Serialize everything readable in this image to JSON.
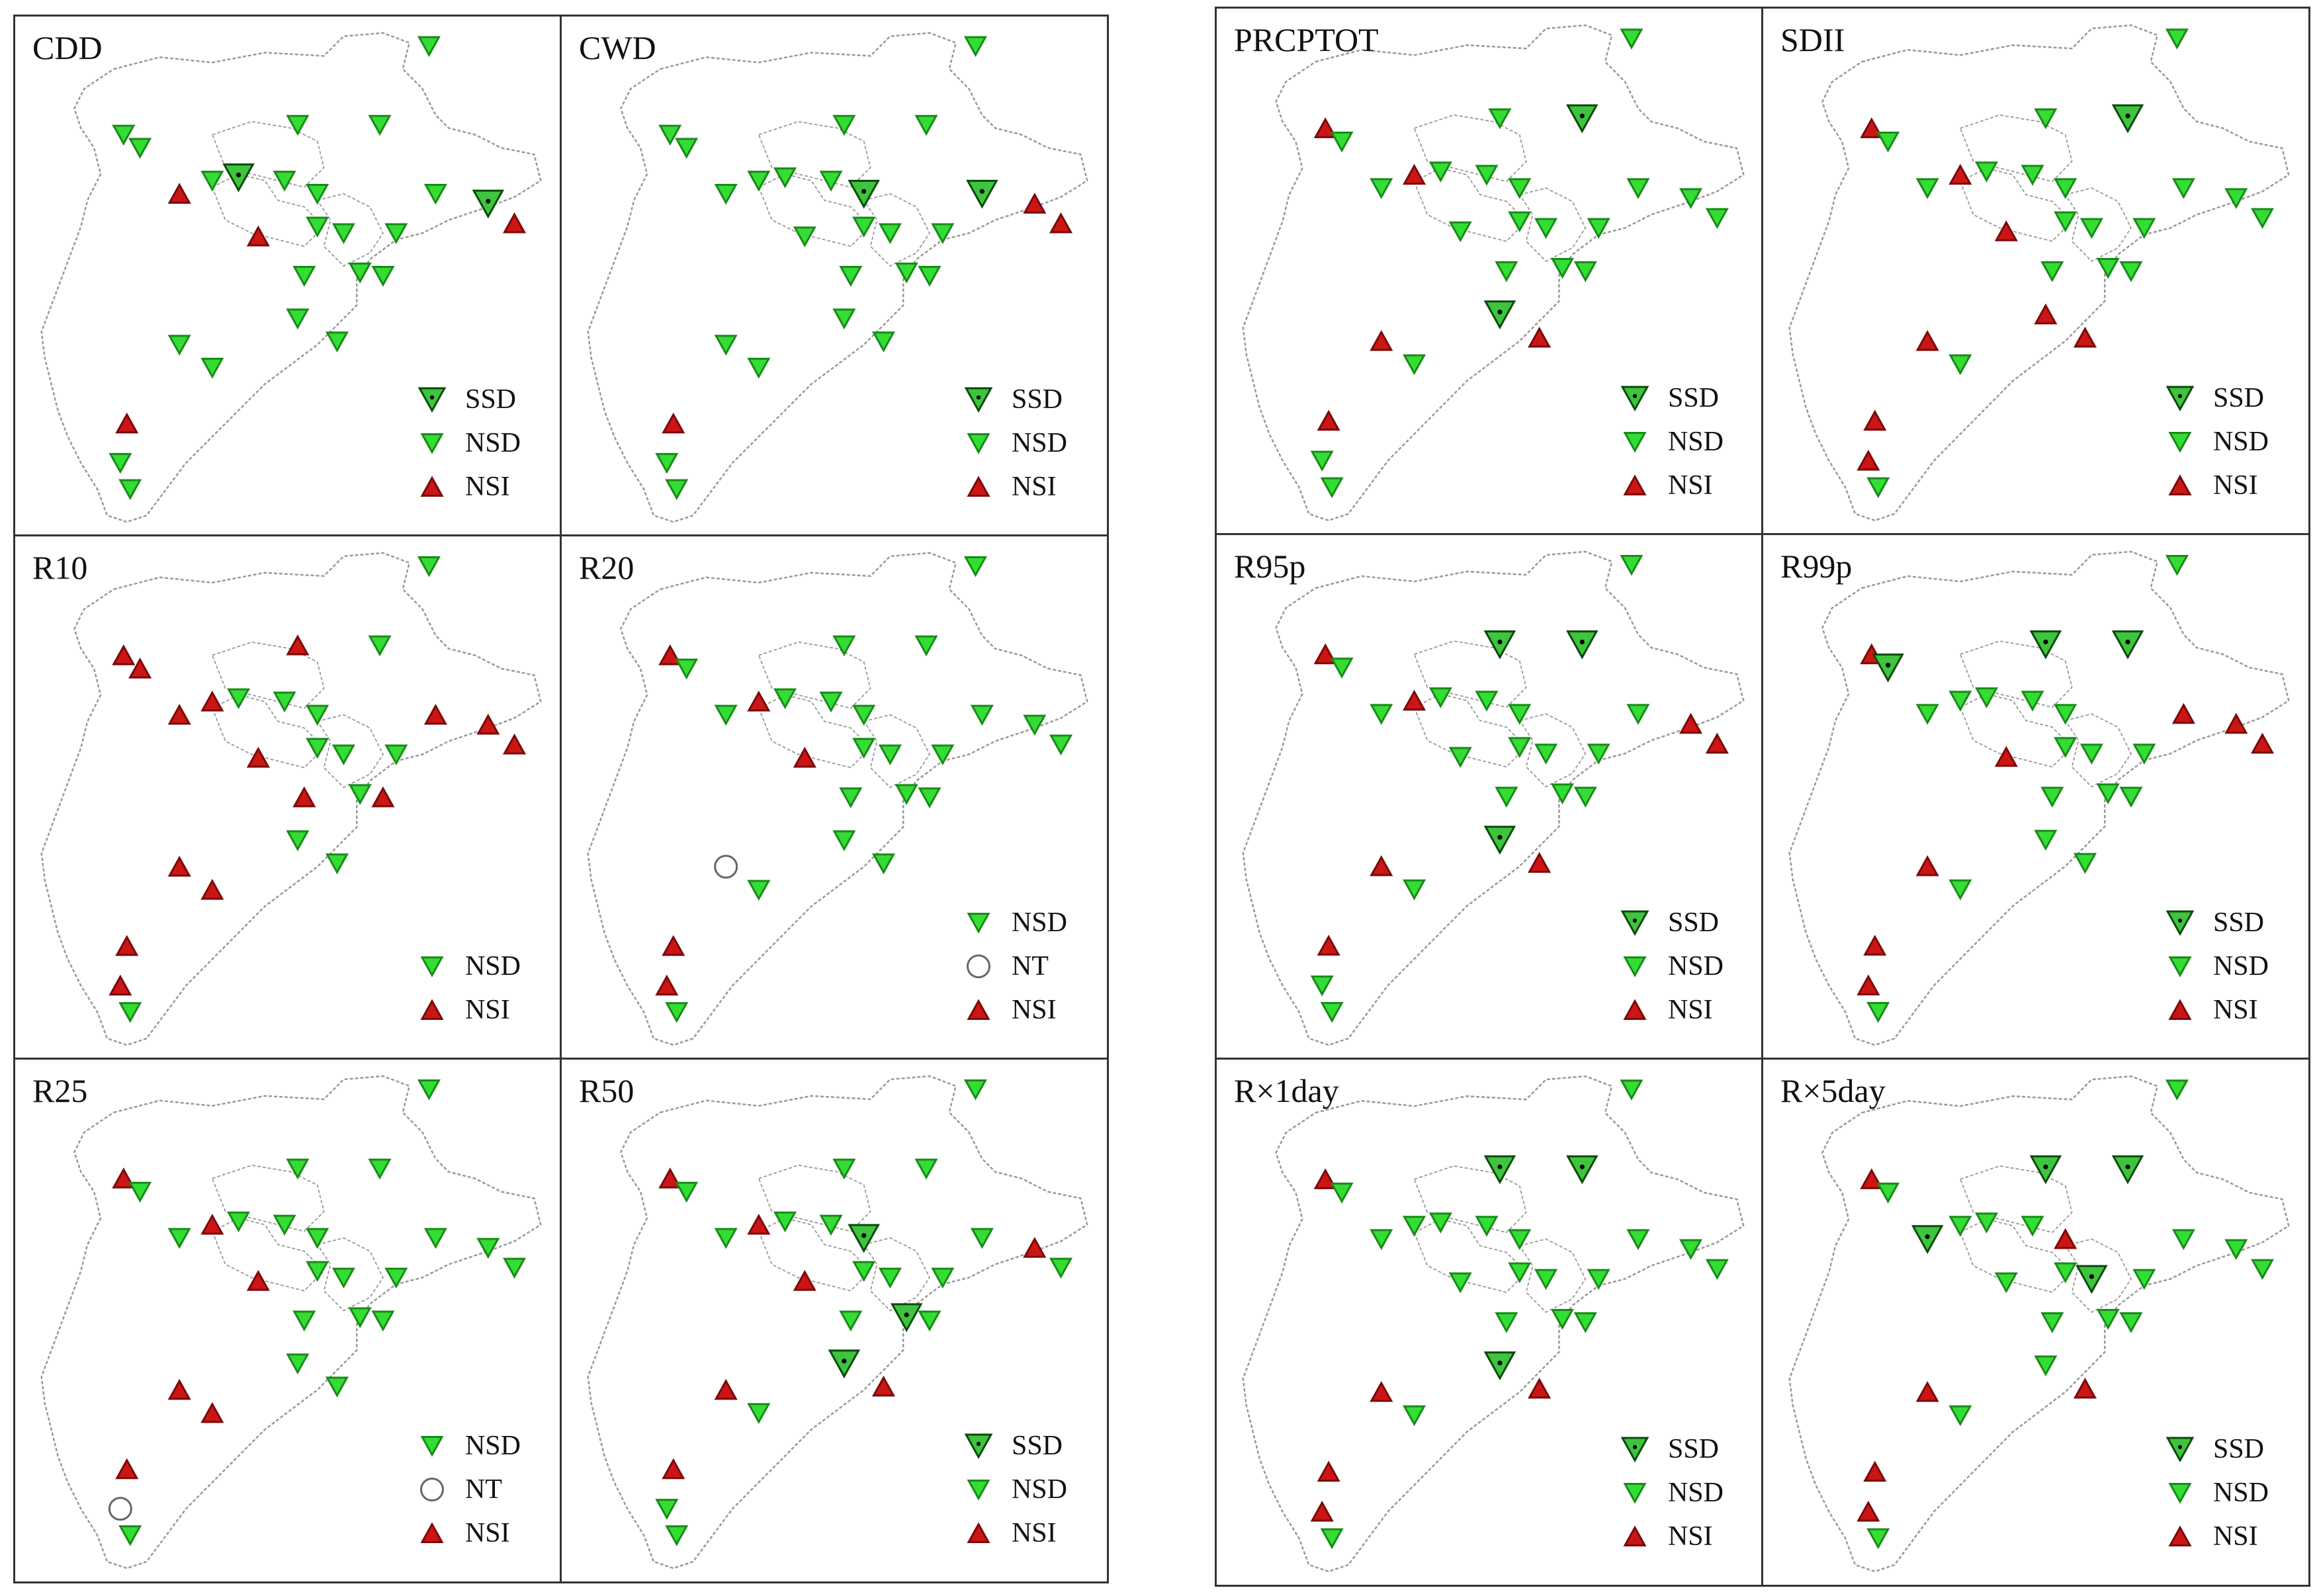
{
  "figure": {
    "panels": [
      {
        "id": "CDD",
        "title": "CDD",
        "stations": [
          "NSD",
          "NSD",
          "NSD",
          "SSD",
          "NSD",
          "NSI",
          "NSD",
          "NSD",
          "NSD",
          "NSD",
          "NSI",
          "NSD",
          "NSD",
          "NSD",
          "NSD",
          "SSD",
          "NSI",
          "NSD",
          "NSD",
          "NSD",
          "NSD",
          "NSD",
          "NSD",
          "NSD",
          "NSI",
          "NSD",
          "NSD"
        ],
        "legend": [
          {
            "symbol": "SSD",
            "label": "SSD"
          },
          {
            "symbol": "NSD",
            "label": "NSD"
          },
          {
            "symbol": "NSI",
            "label": "NSI"
          }
        ]
      },
      {
        "id": "CWD",
        "title": "CWD",
        "stations": [
          "NSD",
          "NSD",
          "NSD",
          "NSD",
          "NSD",
          "NSD",
          "NSD",
          "SSD",
          "NSD",
          "NSD",
          "NSD",
          "NSD",
          "NSD",
          "NSD",
          "SSD",
          "NSI",
          "NSI",
          "NSD",
          "NSD",
          "NSD",
          "NSD",
          "NSD",
          "NSD",
          "NSD",
          "NSI",
          "NSD",
          "NSD"
        ],
        "legend": [
          {
            "symbol": "SSD",
            "label": "SSD"
          },
          {
            "symbol": "NSD",
            "label": "NSD"
          },
          {
            "symbol": "NSI",
            "label": "NSI"
          }
        ]
      },
      {
        "id": "PRCPTOT",
        "title": "PRCPTOT",
        "stations": [
          "NSI",
          "NSD",
          "NSI",
          "NSD",
          "NSD",
          "NSD",
          "NSD",
          "NSD",
          "SSD",
          "NSD",
          "NSD",
          "NSD",
          "NSD",
          "NSD",
          "NSD",
          "NSD",
          "NSD",
          "NSD",
          "NSD",
          "NSD",
          "SSD",
          "NSI",
          "NSI",
          "NSD",
          "NSI",
          "NSD",
          "NSD"
        ],
        "legend": [
          {
            "symbol": "SSD",
            "label": "SSD"
          },
          {
            "symbol": "NSD",
            "label": "NSD"
          },
          {
            "symbol": "NSI",
            "label": "NSI"
          }
        ]
      },
      {
        "id": "SDII",
        "title": "SDII",
        "stations": [
          "NSI",
          "NSD",
          "NSI",
          "NSD",
          "NSD",
          "NSD",
          "NSD",
          "NSD",
          "SSD",
          "NSD",
          "NSI",
          "NSD",
          "NSD",
          "NSD",
          "NSD",
          "NSD",
          "NSD",
          "NSD",
          "NSD",
          "NSD",
          "NSI",
          "NSI",
          "NSI",
          "NSD",
          "NSI",
          "NSI",
          "NSD"
        ],
        "legend": [
          {
            "symbol": "SSD",
            "label": "SSD"
          },
          {
            "symbol": "NSD",
            "label": "NSD"
          },
          {
            "symbol": "NSI",
            "label": "NSI"
          }
        ]
      },
      {
        "id": "R10",
        "title": "R10",
        "stations": [
          "NSI",
          "NSI",
          "NSI",
          "NSD",
          "NSI",
          "NSI",
          "NSD",
          "NSD",
          "NSD",
          "NSD",
          "NSI",
          "NSD",
          "NSD",
          "NSD",
          "NSI",
          "NSI",
          "NSI",
          "NSI",
          "NSI",
          "NSD",
          "NSD",
          "NSD",
          "NSI",
          "NSI",
          "NSI",
          "NSI",
          "NSD"
        ],
        "legend": [
          {
            "symbol": "NSD",
            "label": "NSD"
          },
          {
            "symbol": "NSI",
            "label": "NSI"
          }
        ]
      },
      {
        "id": "R20",
        "title": "R20",
        "stations": [
          "NSI",
          "NSD",
          "NSI",
          "NSD",
          "NSD",
          "NSD",
          "NSD",
          "NSD",
          "NSD",
          "NSD",
          "NSI",
          "NSD",
          "NSD",
          "NSD",
          "NSD",
          "NSD",
          "NSD",
          "NSD",
          "NSD",
          "NSD",
          "NSD",
          "NSD",
          "NT",
          "NSD",
          "NSI",
          "NSI",
          "NSD"
        ],
        "legend": [
          {
            "symbol": "NSD",
            "label": "NSD"
          },
          {
            "symbol": "NT",
            "label": "NT"
          },
          {
            "symbol": "NSI",
            "label": "NSI"
          }
        ]
      },
      {
        "id": "R95p",
        "title": "R95p",
        "stations": [
          "NSI",
          "NSD",
          "NSI",
          "NSD",
          "SSD",
          "NSD",
          "NSD",
          "NSD",
          "SSD",
          "NSD",
          "NSD",
          "NSD",
          "NSD",
          "NSD",
          "NSD",
          "NSI",
          "NSI",
          "NSD",
          "NSD",
          "NSD",
          "SSD",
          "NSI",
          "NSI",
          "NSD",
          "NSI",
          "NSD",
          "NSD"
        ],
        "legend": [
          {
            "symbol": "SSD",
            "label": "SSD"
          },
          {
            "symbol": "NSD",
            "label": "NSD"
          },
          {
            "symbol": "NSI",
            "label": "NSI"
          }
        ]
      },
      {
        "id": "R99p",
        "title": "R99p",
        "stations": [
          "NSI",
          "SSD",
          "NSD",
          "NSD",
          "SSD",
          "NSD",
          "NSD",
          "NSD",
          "SSD",
          "NSD",
          "NSI",
          "NSD",
          "NSD",
          "NSD",
          "NSI",
          "NSI",
          "NSI",
          "NSD",
          "NSD",
          "NSD",
          "NSD",
          "NSD",
          "NSI",
          "NSD",
          "NSI",
          "NSI",
          "NSD"
        ],
        "legend": [
          {
            "symbol": "SSD",
            "label": "SSD"
          },
          {
            "symbol": "NSD",
            "label": "NSD"
          },
          {
            "symbol": "NSI",
            "label": "NSI"
          }
        ]
      },
      {
        "id": "R25",
        "title": "R25",
        "stations": [
          "NSI",
          "NSD",
          "NSI",
          "NSD",
          "NSD",
          "NSD",
          "NSD",
          "NSD",
          "NSD",
          "NSD",
          "NSI",
          "NSD",
          "NSD",
          "NSD",
          "NSD",
          "NSD",
          "NSD",
          "NSD",
          "NSD",
          "NSD",
          "NSD",
          "NSD",
          "NSI",
          "NSI",
          "NSI",
          "NT",
          "NSD"
        ],
        "legend": [
          {
            "symbol": "NSD",
            "label": "NSD"
          },
          {
            "symbol": "NT",
            "label": "NT"
          },
          {
            "symbol": "NSI",
            "label": "NSI"
          }
        ]
      },
      {
        "id": "R50",
        "title": "R50",
        "stations": [
          "NSI",
          "NSD",
          "NSI",
          "NSD",
          "NSD",
          "NSD",
          "NSD",
          "SSD",
          "NSD",
          "NSD",
          "NSI",
          "NSD",
          "NSD",
          "NSD",
          "NSD",
          "NSI",
          "NSD",
          "NSD",
          "NSD",
          "SSD",
          "SSD",
          "NSI",
          "NSI",
          "NSD",
          "NSI",
          "NSD",
          "NSD"
        ],
        "legend": [
          {
            "symbol": "SSD",
            "label": "SSD"
          },
          {
            "symbol": "NSD",
            "label": "NSD"
          },
          {
            "symbol": "NSI",
            "label": "NSI"
          }
        ]
      },
      {
        "id": "Rx1day",
        "title": "R×1day",
        "stations": [
          "NSI",
          "NSD",
          "NSD",
          "NSD",
          "SSD",
          "NSD",
          "NSD",
          "NSD",
          "SSD",
          "NSD",
          "NSD",
          "NSD",
          "NSD",
          "NSD",
          "NSD",
          "NSD",
          "NSD",
          "NSD",
          "NSD",
          "NSD",
          "SSD",
          "NSI",
          "NSI",
          "NSD",
          "NSI",
          "NSI",
          "NSD"
        ],
        "legend": [
          {
            "symbol": "SSD",
            "label": "SSD"
          },
          {
            "symbol": "NSD",
            "label": "NSD"
          },
          {
            "symbol": "NSI",
            "label": "NSI"
          }
        ]
      },
      {
        "id": "Rx5day",
        "title": "R×5day",
        "stations": [
          "NSI",
          "NSD",
          "NSD",
          "NSD",
          "SSD",
          "SSD",
          "NSD",
          "NSI",
          "SSD",
          "NSD",
          "NSD",
          "NSD",
          "SSD",
          "NSD",
          "NSD",
          "NSD",
          "NSD",
          "NSD",
          "NSD",
          "NSD",
          "NSD",
          "NSI",
          "NSI",
          "NSD",
          "NSI",
          "NSI",
          "NSD"
        ],
        "legend": [
          {
            "symbol": "SSD",
            "label": "SSD"
          },
          {
            "symbol": "NSD",
            "label": "NSD"
          },
          {
            "symbol": "NSI",
            "label": "NSI"
          }
        ]
      }
    ]
  },
  "symbol_styles": {
    "SSD": {
      "fill": "#3ec43e",
      "stroke": "#0a4a0a",
      "dot": "#000000"
    },
    "NSD": {
      "fill": "#33dd33",
      "stroke": "#1a8a1a"
    },
    "NSI": {
      "fill": "#cc1515",
      "stroke": "#7a0a0a"
    },
    "NT": {
      "fill": "#ffffff",
      "stroke": "#666666"
    },
    "boundary": "#999999"
  }
}
